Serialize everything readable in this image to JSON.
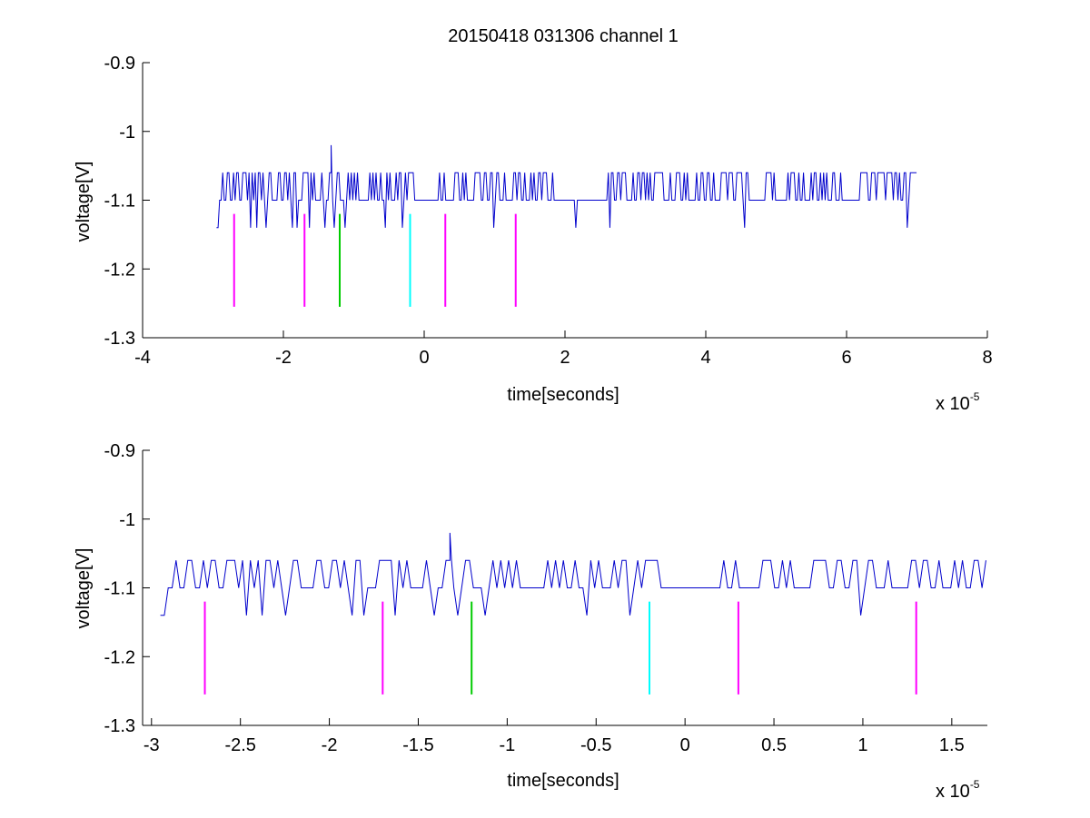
{
  "figure": {
    "background": "#ffffff"
  },
  "chart_data": [
    {
      "type": "line",
      "title": "20150418 031306 channel 1",
      "xlabel": "time[seconds]",
      "ylabel": "voltage[V]",
      "x_exponent_label": "x 10",
      "x_exponent": "-5",
      "xlim": [
        -4,
        8
      ],
      "ylim": [
        -1.3,
        -0.9
      ],
      "y_reversed": false,
      "xticks": [
        -4,
        -2,
        0,
        2,
        4,
        6,
        8
      ],
      "xtick_labels": [
        "-4",
        "-2",
        "0",
        "2",
        "4",
        "6",
        "8"
      ],
      "yticks": [
        -0.9,
        -1,
        -1.1,
        -1.2,
        -1.3
      ],
      "ytick_labels": [
        "-0.9",
        "-1",
        "-1.1",
        "-1.2",
        "-1.3"
      ],
      "signal": {
        "color": "#0000cc",
        "x_range": [
          -2.95,
          7.0
        ],
        "levels": [
          -1.06,
          -1.1,
          -1.14
        ],
        "spike_x": -1.33,
        "spike_y": -1.02,
        "start_y": -1.14
      },
      "markers": [
        {
          "x": -2.7,
          "color": "#ff00ff"
        },
        {
          "x": -1.7,
          "color": "#ff00ff"
        },
        {
          "x": -1.2,
          "color": "#00cc00"
        },
        {
          "x": -0.2,
          "color": "#00ffff"
        },
        {
          "x": 0.3,
          "color": "#ff00ff"
        },
        {
          "x": 1.3,
          "color": "#ff00ff"
        }
      ],
      "marker_y_range": [
        -1.12,
        -1.255
      ]
    },
    {
      "type": "line",
      "title": "",
      "xlabel": "time[seconds]",
      "ylabel": "voltage[V]",
      "x_exponent_label": "x 10",
      "x_exponent": "-5",
      "xlim": [
        -3.05,
        1.7
      ],
      "ylim": [
        -1.3,
        -0.9
      ],
      "xticks": [
        -3,
        -2.5,
        -2,
        -1.5,
        -1,
        -0.5,
        0,
        0.5,
        1,
        1.5
      ],
      "xtick_labels": [
        "-3",
        "-2.5",
        "-2",
        "-1.5",
        "-1",
        "-0.5",
        "0",
        "0.5",
        "1",
        "1.5"
      ],
      "yticks": [
        -0.9,
        -1,
        -1.1,
        -1.2,
        -1.3
      ],
      "ytick_labels": [
        "-0.9",
        "-1",
        "-1.1",
        "-1.2",
        "-1.3"
      ],
      "signal": {
        "color": "#0000cc",
        "x_range": [
          -2.95,
          1.7
        ],
        "levels": [
          -1.06,
          -1.1,
          -1.14
        ],
        "spike_x": -1.33,
        "spike_y": -1.02,
        "start_y": -1.14
      },
      "markers": [
        {
          "x": -2.7,
          "color": "#ff00ff"
        },
        {
          "x": -1.7,
          "color": "#ff00ff"
        },
        {
          "x": -1.2,
          "color": "#00cc00"
        },
        {
          "x": -0.2,
          "color": "#00ffff"
        },
        {
          "x": 0.3,
          "color": "#ff00ff"
        },
        {
          "x": 1.3,
          "color": "#ff00ff"
        }
      ],
      "marker_y_range": [
        -1.12,
        -1.255
      ]
    }
  ]
}
